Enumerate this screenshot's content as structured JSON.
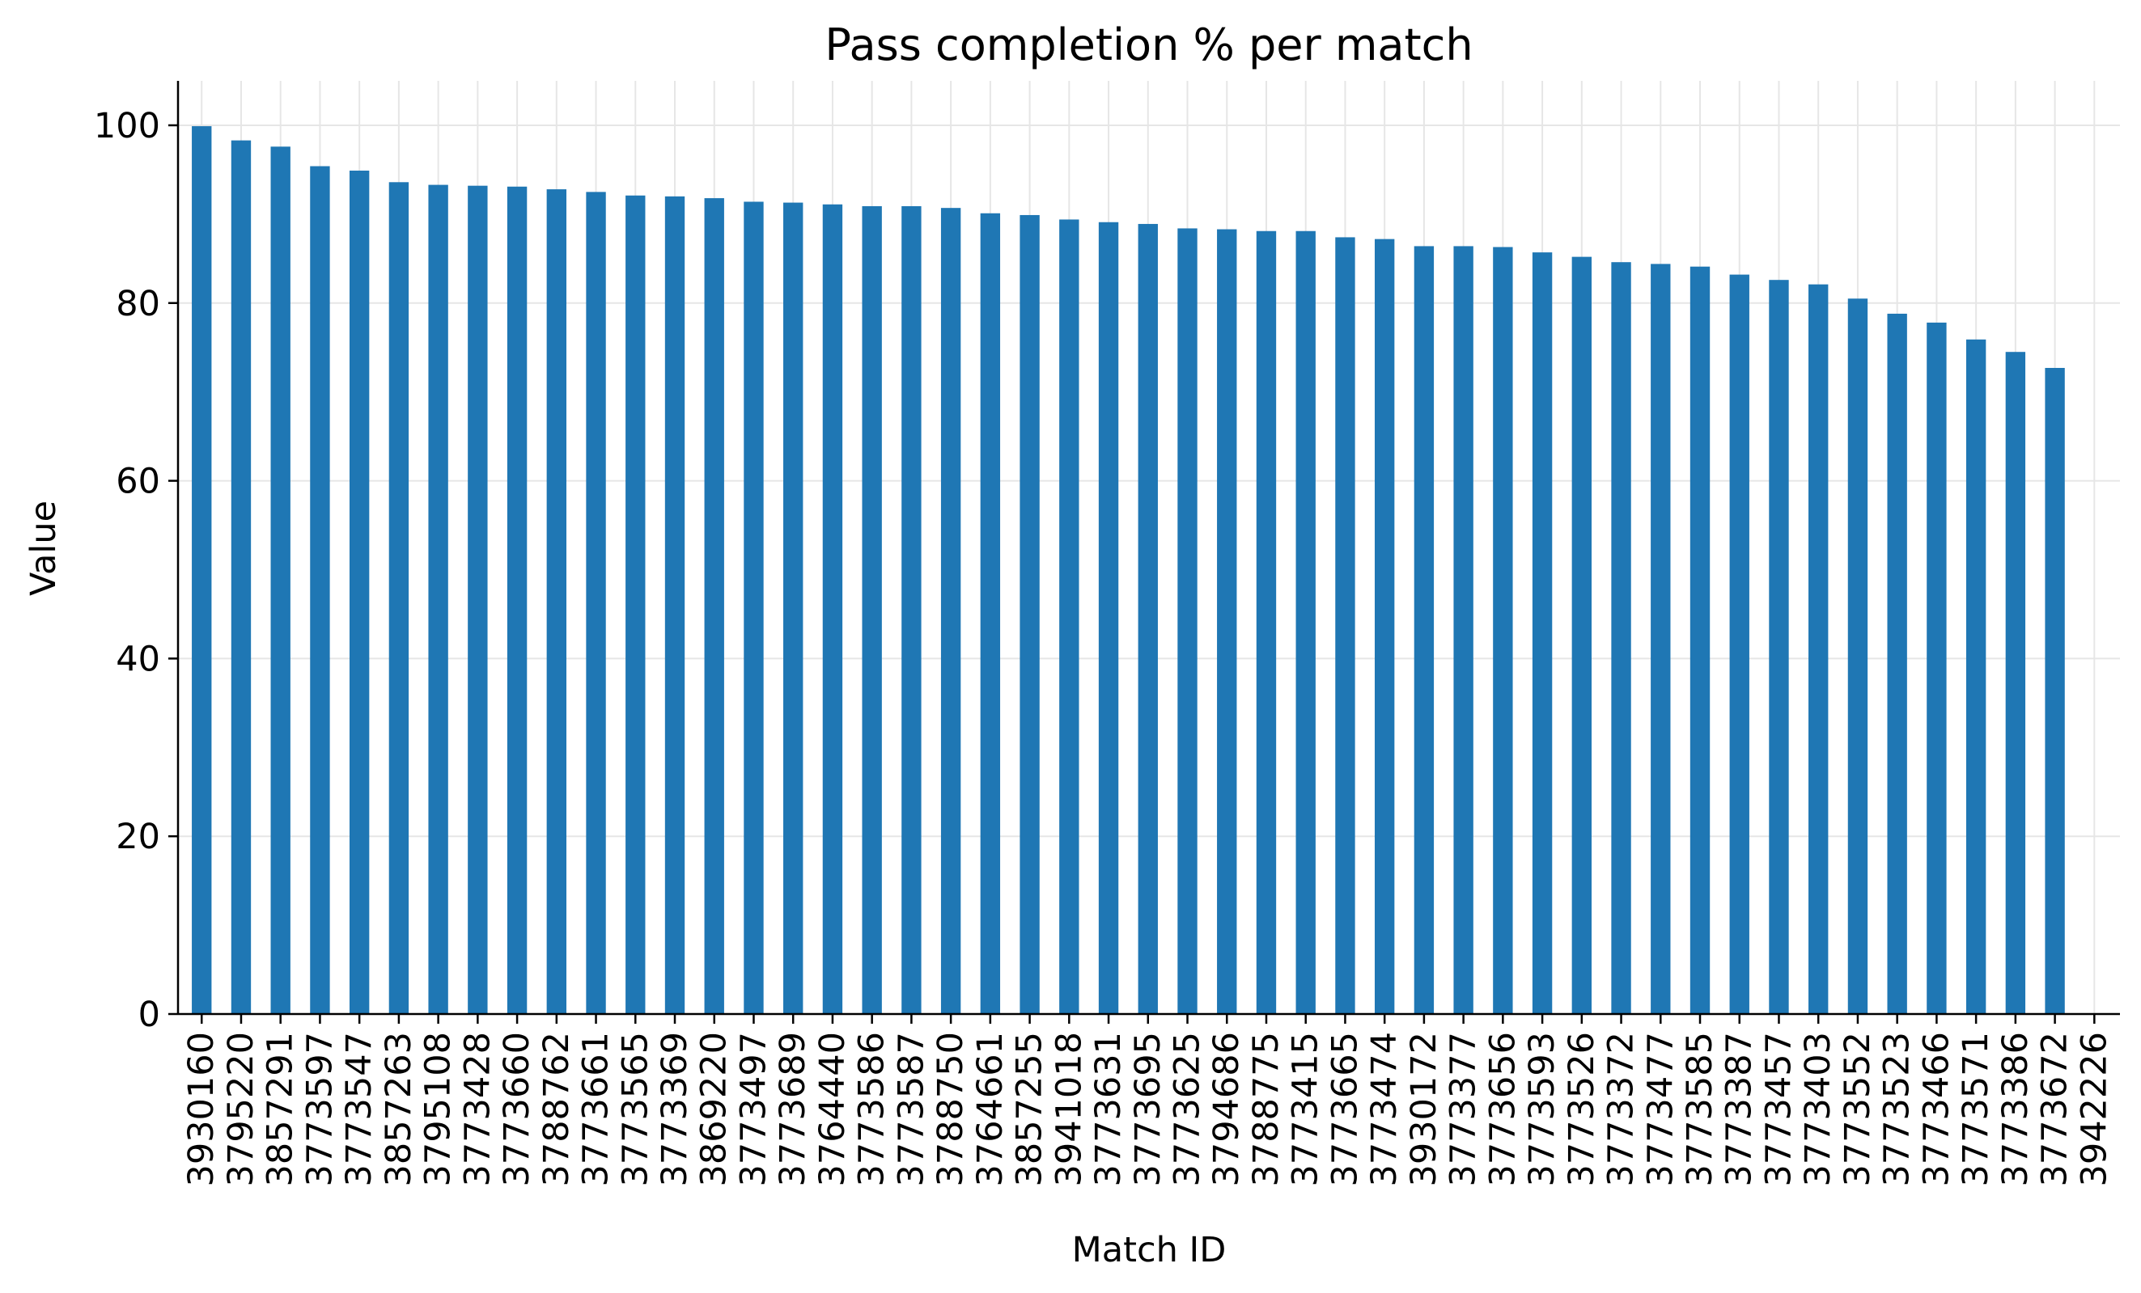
{
  "chart_data": {
    "type": "bar",
    "title": "Pass completion % per match",
    "xlabel": "Match ID",
    "ylabel": "Value",
    "ylim": [
      0,
      105
    ],
    "yticks": [
      0,
      20,
      40,
      60,
      80,
      100
    ],
    "grid": true,
    "bar_color": "#1f77b4",
    "categories": [
      "3930160",
      "3795220",
      "3857291",
      "3773597",
      "3773547",
      "3857263",
      "3795108",
      "3773428",
      "3773660",
      "3788762",
      "3773661",
      "3773565",
      "3773369",
      "3869220",
      "3773497",
      "3773689",
      "3764440",
      "3773586",
      "3773587",
      "3788750",
      "3764661",
      "3857255",
      "3941018",
      "3773631",
      "3773695",
      "3773625",
      "3794686",
      "3788775",
      "3773415",
      "3773665",
      "3773474",
      "3930172",
      "3773377",
      "3773656",
      "3773593",
      "3773526",
      "3773372",
      "3773477",
      "3773585",
      "3773387",
      "3773457",
      "3773403",
      "3773552",
      "3773523",
      "3773466",
      "3773571",
      "3773386",
      "3773672",
      "3942226"
    ],
    "values": [
      99.9,
      98.3,
      97.6,
      95.4,
      94.9,
      93.6,
      93.3,
      93.2,
      93.1,
      92.8,
      92.5,
      92.1,
      92.0,
      91.8,
      91.4,
      91.3,
      91.1,
      90.9,
      90.9,
      90.7,
      90.1,
      89.9,
      89.4,
      89.1,
      88.9,
      88.4,
      88.3,
      88.1,
      88.1,
      87.4,
      87.2,
      86.4,
      86.4,
      86.3,
      85.7,
      85.2,
      84.6,
      84.4,
      84.1,
      83.2,
      82.6,
      82.1,
      80.5,
      78.8,
      77.8,
      75.9,
      74.5,
      72.7,
      0
    ]
  }
}
